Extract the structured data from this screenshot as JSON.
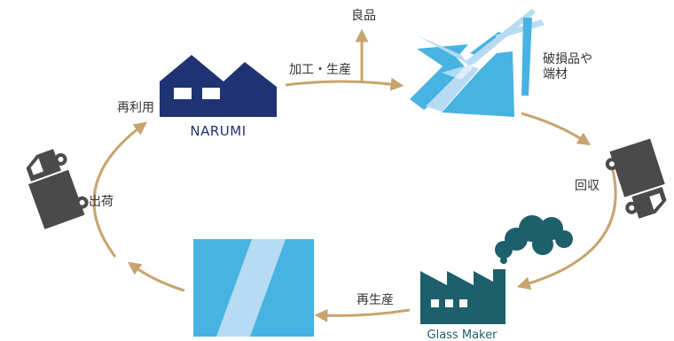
{
  "colors": {
    "arrow": "#c8a46e",
    "narumi": "#1f3372",
    "glass_light": "#47b3e3",
    "glass_pale": "#b7dbf3",
    "factory": "#1d5f6b",
    "truck": "#4a4a4a"
  },
  "nodes": {
    "narumi": {
      "label": "NARUMI",
      "icon": "house-icon"
    },
    "waste": {
      "label_line1": "破損品や",
      "label_line2": "端材",
      "icon": "broken-glass-icon"
    },
    "maker": {
      "label": "Glass Maker",
      "icon": "factory-icon"
    },
    "glass": {
      "icon": "glass-panel-icon"
    },
    "truck_right": {
      "icon": "truck-icon"
    },
    "truck_left": {
      "icon": "truck-icon"
    }
  },
  "edges": {
    "process": "加工・生産",
    "good": "良品",
    "collect": "回収",
    "regen": "再生産",
    "ship": "出荷",
    "reuse": "再利用"
  }
}
